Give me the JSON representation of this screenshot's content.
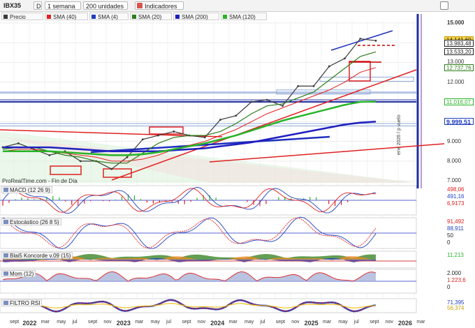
{
  "toolbar": {
    "symbol": "IBX35",
    "symbol_btn": "D",
    "period": "1 semana",
    "units": "200 unidades",
    "indicators": "Indicadores"
  },
  "legend": {
    "items": [
      {
        "label": "Precio",
        "color": "#3a3a3a"
      },
      {
        "label": "SMA (40)",
        "color": "#e02020"
      },
      {
        "label": "SMA (4)",
        "color": "#1f3fbf"
      },
      {
        "label": "SMA (20)",
        "color": "#2e7d1a"
      },
      {
        "label": "SMA (200)",
        "color": "#1f1fbf"
      },
      {
        "label": "SMA (120)",
        "color": "#27b427"
      }
    ]
  },
  "source": "ProRealTime.com - Fin de Día",
  "vertical_marker": "ene 2026 / p vuelo",
  "price_axis": {
    "ticks": [
      "15.000",
      "14.000",
      "13.000",
      "12.000",
      "11.000",
      "10.000",
      "9.000",
      "8.000",
      "7.000"
    ],
    "labels": [
      {
        "text": "14.141,60",
        "color": "#c8a000",
        "value": 14141.6
      },
      {
        "text": "13.983,48",
        "color": "#222222",
        "value": 13983.48
      },
      {
        "text": "13.533,20",
        "color": "#222222",
        "value": 13533.2
      },
      {
        "text": "12.737,76",
        "color": "#2e7d1a",
        "value": 12737.76
      },
      {
        "text": "11.016,07",
        "color": "#27b427",
        "value": 11016.07
      },
      {
        "text": "9.999,51",
        "color": "#1f3fbf",
        "value": 9999.51
      }
    ]
  },
  "x_axis": {
    "ticks": [
      "sept",
      "2022",
      "mar",
      "may",
      "jul",
      "sept",
      "nov",
      "2023",
      "mar",
      "may",
      "jul",
      "sept",
      "nov",
      "2024",
      "mar",
      "may",
      "jul",
      "sept",
      "nov",
      "2025",
      "mar",
      "may",
      "jul",
      "sept",
      "nov",
      "2026",
      "mar"
    ]
  },
  "indicators": [
    {
      "id": "macd",
      "title": "MACD (12 26 9)",
      "labels": [
        {
          "text": "498,06",
          "color": "#e02020"
        },
        {
          "text": "491,16",
          "color": "#1f3fbf"
        },
        {
          "text": "6,9173",
          "color": "#e02020"
        }
      ]
    },
    {
      "id": "stoch",
      "title": "Estocástico (26 8 5)",
      "labels": [
        {
          "text": "91,492",
          "color": "#e02020"
        },
        {
          "text": "88,911",
          "color": "#1f3fbf"
        },
        {
          "text": "50",
          "color": "#222222"
        },
        {
          "text": "0",
          "color": "#222222"
        }
      ]
    },
    {
      "id": "blai",
      "title": "Blai5 Koncorde v.09 (15)",
      "labels": [
        {
          "text": "11,213",
          "color": "#27b427"
        }
      ]
    },
    {
      "id": "mom",
      "title": "Mom (12)",
      "labels": [
        {
          "text": "2.000",
          "color": "#222222"
        },
        {
          "text": "1.223,6",
          "color": "#e02020"
        },
        {
          "text": "0",
          "color": "#222222"
        }
      ]
    },
    {
      "id": "rsi",
      "title": "FILTRO RSI",
      "labels": [
        {
          "text": "71,395",
          "color": "#1f3fbf"
        },
        {
          "text": "56,374",
          "color": "#c8a000"
        }
      ]
    }
  ],
  "chart_data": {
    "type": "line",
    "title": "IBX35",
    "ylim": [
      6900,
      15100
    ],
    "x": [
      "2021-08",
      "2021-10",
      "2021-12",
      "2022-02",
      "2022-04",
      "2022-06",
      "2022-08",
      "2022-10",
      "2022-12",
      "2023-02",
      "2023-04",
      "2023-06",
      "2023-08",
      "2023-10",
      "2023-12",
      "2024-02",
      "2024-04",
      "2024-06",
      "2024-08",
      "2024-10",
      "2024-12",
      "2025-02",
      "2025-04",
      "2025-06",
      "2025-07"
    ],
    "series": [
      {
        "name": "Precio",
        "values": [
          8700,
          8900,
          8600,
          8300,
          8500,
          8000,
          8000,
          7600,
          8200,
          9100,
          9300,
          9500,
          9300,
          9200,
          10100,
          10300,
          11000,
          11100,
          10800,
          11800,
          11800,
          12800,
          13200,
          14200,
          14100
        ]
      },
      {
        "name": "SMA (40)",
        "values": [
          8500,
          8600,
          8600,
          8500,
          8400,
          8300,
          8200,
          8000,
          8000,
          8100,
          8300,
          8600,
          8800,
          9000,
          9300,
          9600,
          10000,
          10400,
          10700,
          11000,
          11300,
          11600,
          12000,
          12500,
          12738
        ]
      },
      {
        "name": "SMA (20)",
        "values": [
          8600,
          8700,
          8700,
          8500,
          8300,
          8200,
          8000,
          7900,
          7900,
          8400,
          8900,
          9200,
          9300,
          9300,
          9500,
          9900,
          10400,
          10800,
          10900,
          11200,
          11500,
          12100,
          12700,
          13300,
          13533
        ]
      },
      {
        "name": "SMA (200)",
        "values": [
          8700,
          8700,
          8700,
          8700,
          8650,
          8600,
          8550,
          8500,
          8500,
          8500,
          8500,
          8550,
          8600,
          8650,
          8750,
          8850,
          8950,
          9100,
          9250,
          9400,
          9550,
          9700,
          9850,
          9950,
          10000
        ]
      },
      {
        "name": "SMA (120)",
        "values": [
          8500,
          8500,
          8500,
          8500,
          8450,
          8400,
          8350,
          8300,
          8300,
          8350,
          8450,
          8600,
          8750,
          8900,
          9100,
          9300,
          9550,
          9800,
          10050,
          10250,
          10450,
          10650,
          10850,
          11000,
          11016
        ]
      }
    ]
  }
}
